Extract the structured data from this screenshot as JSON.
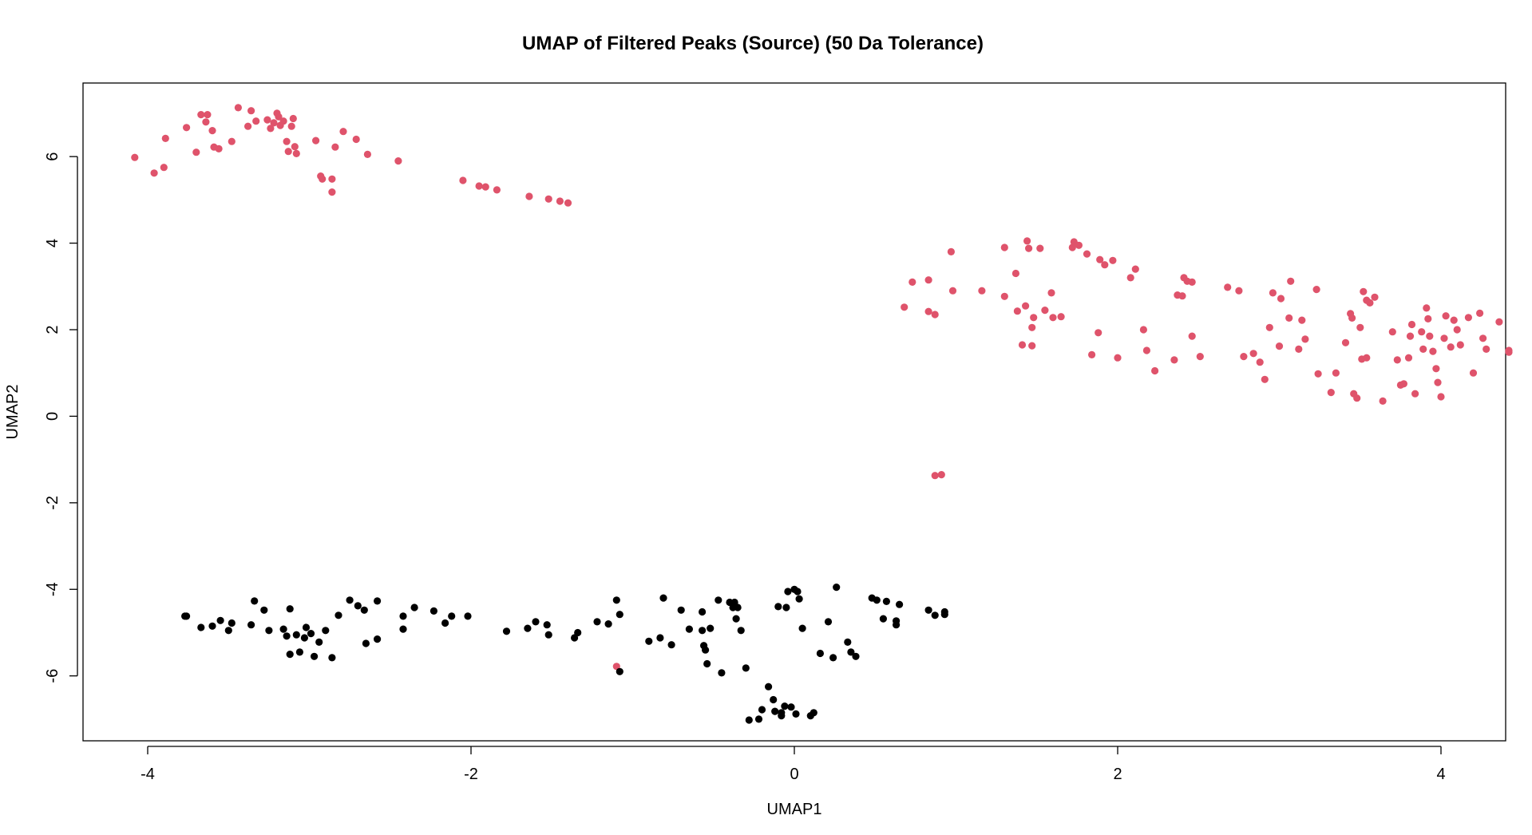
{
  "chart_data": {
    "type": "scatter",
    "title": "UMAP of Filtered Peaks (Source) (50 Da Tolerance)",
    "xlabel": "UMAP1",
    "ylabel": "UMAP2",
    "xlim": [
      -4.4,
      4.4
    ],
    "ylim": [
      -7.5,
      7.7
    ],
    "xticks": [
      -4,
      -2,
      0,
      2,
      4
    ],
    "yticks": [
      -6,
      -4,
      -2,
      0,
      2,
      4,
      6
    ],
    "colors": {
      "red": "#df536b",
      "black": "#000000"
    },
    "series": [
      {
        "color": "red",
        "points": [
          [
            -4.08,
            5.98
          ],
          [
            -3.96,
            5.62
          ],
          [
            -3.9,
            5.75
          ],
          [
            -3.89,
            6.42
          ],
          [
            -3.76,
            6.67
          ],
          [
            -3.7,
            6.1
          ],
          [
            -3.67,
            6.97
          ],
          [
            -3.64,
            6.8
          ],
          [
            -3.63,
            6.97
          ],
          [
            -3.6,
            6.6
          ],
          [
            -3.59,
            6.22
          ],
          [
            -3.56,
            6.18
          ],
          [
            -3.48,
            6.35
          ],
          [
            -3.44,
            7.13
          ],
          [
            -3.38,
            6.7
          ],
          [
            -3.36,
            7.06
          ],
          [
            -3.33,
            6.82
          ],
          [
            -3.26,
            6.85
          ],
          [
            -3.24,
            6.65
          ],
          [
            -3.22,
            6.78
          ],
          [
            -3.2,
            7.0
          ],
          [
            -3.19,
            6.92
          ],
          [
            -3.18,
            6.72
          ],
          [
            -3.16,
            6.82
          ],
          [
            -3.14,
            6.35
          ],
          [
            -3.13,
            6.12
          ],
          [
            -3.11,
            6.7
          ],
          [
            -3.1,
            6.88
          ],
          [
            -3.09,
            6.23
          ],
          [
            -3.08,
            6.07
          ],
          [
            -2.96,
            6.37
          ],
          [
            -2.93,
            5.55
          ],
          [
            -2.92,
            5.48
          ],
          [
            -2.86,
            5.48
          ],
          [
            -2.86,
            5.18
          ],
          [
            -2.84,
            6.22
          ],
          [
            -2.79,
            6.58
          ],
          [
            -2.71,
            6.4
          ],
          [
            -2.64,
            6.05
          ],
          [
            -2.45,
            5.9
          ],
          [
            -2.05,
            5.45
          ],
          [
            -1.95,
            5.32
          ],
          [
            -1.91,
            5.3
          ],
          [
            -1.84,
            5.23
          ],
          [
            -1.64,
            5.08
          ],
          [
            -1.52,
            5.02
          ],
          [
            -1.45,
            4.97
          ],
          [
            -1.4,
            4.93
          ],
          [
            -1.1,
            -5.78
          ],
          [
            0.68,
            2.52
          ],
          [
            0.73,
            3.1
          ],
          [
            0.83,
            3.15
          ],
          [
            0.83,
            2.42
          ],
          [
            0.87,
            2.35
          ],
          [
            0.87,
            -1.37
          ],
          [
            0.91,
            -1.35
          ],
          [
            0.97,
            3.8
          ],
          [
            0.98,
            2.9
          ],
          [
            1.16,
            2.9
          ],
          [
            1.3,
            3.9
          ],
          [
            1.3,
            2.77
          ],
          [
            1.37,
            3.3
          ],
          [
            1.38,
            2.43
          ],
          [
            1.41,
            1.65
          ],
          [
            1.43,
            2.55
          ],
          [
            1.44,
            4.05
          ],
          [
            1.45,
            3.88
          ],
          [
            1.47,
            2.05
          ],
          [
            1.47,
            1.63
          ],
          [
            1.48,
            2.28
          ],
          [
            1.52,
            3.88
          ],
          [
            1.55,
            2.45
          ],
          [
            1.59,
            2.85
          ],
          [
            1.6,
            2.28
          ],
          [
            1.65,
            2.3
          ],
          [
            1.72,
            3.9
          ],
          [
            1.73,
            4.03
          ],
          [
            1.76,
            3.95
          ],
          [
            1.81,
            3.75
          ],
          [
            1.84,
            1.42
          ],
          [
            1.88,
            1.93
          ],
          [
            1.89,
            3.62
          ],
          [
            1.92,
            3.5
          ],
          [
            1.97,
            3.6
          ],
          [
            2.0,
            1.35
          ],
          [
            2.08,
            3.2
          ],
          [
            2.11,
            3.4
          ],
          [
            2.16,
            2.0
          ],
          [
            2.18,
            1.52
          ],
          [
            2.23,
            1.05
          ],
          [
            2.35,
            1.3
          ],
          [
            2.37,
            2.8
          ],
          [
            2.4,
            2.78
          ],
          [
            2.41,
            3.2
          ],
          [
            2.43,
            3.12
          ],
          [
            2.46,
            3.1
          ],
          [
            2.46,
            1.85
          ],
          [
            2.51,
            1.38
          ],
          [
            2.68,
            2.98
          ],
          [
            2.75,
            2.9
          ],
          [
            2.78,
            1.38
          ],
          [
            2.84,
            1.45
          ],
          [
            2.88,
            1.25
          ],
          [
            2.91,
            0.85
          ],
          [
            2.94,
            2.05
          ],
          [
            2.96,
            2.85
          ],
          [
            3.0,
            1.62
          ],
          [
            3.01,
            2.72
          ],
          [
            3.06,
            2.27
          ],
          [
            3.07,
            3.12
          ],
          [
            3.12,
            1.55
          ],
          [
            3.14,
            2.22
          ],
          [
            3.16,
            1.78
          ],
          [
            3.23,
            2.93
          ],
          [
            3.24,
            0.98
          ],
          [
            3.32,
            0.55
          ],
          [
            3.35,
            1.0
          ],
          [
            3.41,
            1.7
          ],
          [
            3.44,
            2.37
          ],
          [
            3.45,
            2.27
          ],
          [
            3.46,
            0.52
          ],
          [
            3.48,
            0.42
          ],
          [
            3.5,
            2.05
          ],
          [
            3.51,
            1.32
          ],
          [
            3.52,
            2.88
          ],
          [
            3.54,
            2.68
          ],
          [
            3.54,
            1.35
          ],
          [
            3.56,
            2.62
          ],
          [
            3.59,
            2.75
          ],
          [
            3.64,
            0.35
          ],
          [
            3.7,
            1.95
          ],
          [
            3.73,
            1.3
          ],
          [
            3.75,
            0.72
          ],
          [
            3.77,
            0.75
          ],
          [
            3.8,
            1.35
          ],
          [
            3.81,
            1.85
          ],
          [
            3.82,
            2.12
          ],
          [
            3.84,
            0.52
          ],
          [
            3.88,
            1.95
          ],
          [
            3.89,
            1.55
          ],
          [
            3.91,
            2.5
          ],
          [
            3.92,
            2.25
          ],
          [
            3.93,
            1.85
          ],
          [
            3.95,
            1.5
          ],
          [
            3.97,
            1.1
          ],
          [
            3.98,
            0.78
          ],
          [
            4.0,
            0.45
          ],
          [
            4.02,
            1.8
          ],
          [
            4.03,
            2.32
          ],
          [
            4.06,
            1.6
          ],
          [
            4.08,
            2.22
          ],
          [
            4.1,
            2.0
          ],
          [
            4.12,
            1.65
          ],
          [
            4.17,
            2.28
          ],
          [
            4.2,
            1.0
          ],
          [
            4.24,
            2.38
          ],
          [
            4.26,
            1.8
          ],
          [
            4.28,
            1.55
          ],
          [
            4.36,
            2.18
          ],
          [
            4.42,
            1.52
          ],
          [
            4.42,
            1.48
          ]
        ]
      },
      {
        "color": "black",
        "points": [
          [
            -3.77,
            -4.62
          ],
          [
            -3.76,
            -4.62
          ],
          [
            -3.67,
            -4.88
          ],
          [
            -3.6,
            -4.85
          ],
          [
            -3.55,
            -4.72
          ],
          [
            -3.5,
            -4.95
          ],
          [
            -3.48,
            -4.78
          ],
          [
            -3.36,
            -4.82
          ],
          [
            -3.34,
            -4.27
          ],
          [
            -3.28,
            -4.48
          ],
          [
            -3.25,
            -4.95
          ],
          [
            -3.16,
            -4.92
          ],
          [
            -3.14,
            -5.08
          ],
          [
            -3.12,
            -4.45
          ],
          [
            -3.12,
            -5.5
          ],
          [
            -3.08,
            -5.05
          ],
          [
            -3.06,
            -5.45
          ],
          [
            -3.03,
            -5.12
          ],
          [
            -3.02,
            -4.88
          ],
          [
            -2.99,
            -5.02
          ],
          [
            -2.97,
            -5.55
          ],
          [
            -2.94,
            -5.22
          ],
          [
            -2.9,
            -4.95
          ],
          [
            -2.86,
            -5.58
          ],
          [
            -2.82,
            -4.6
          ],
          [
            -2.75,
            -4.25
          ],
          [
            -2.7,
            -4.38
          ],
          [
            -2.66,
            -4.48
          ],
          [
            -2.65,
            -5.25
          ],
          [
            -2.58,
            -5.15
          ],
          [
            -2.58,
            -4.27
          ],
          [
            -2.42,
            -4.92
          ],
          [
            -2.42,
            -4.62
          ],
          [
            -2.35,
            -4.42
          ],
          [
            -2.23,
            -4.5
          ],
          [
            -2.16,
            -4.78
          ],
          [
            -2.12,
            -4.62
          ],
          [
            -2.02,
            -4.62
          ],
          [
            -1.78,
            -4.97
          ],
          [
            -1.65,
            -4.9
          ],
          [
            -1.6,
            -4.75
          ],
          [
            -1.53,
            -4.82
          ],
          [
            -1.52,
            -5.05
          ],
          [
            -1.36,
            -5.12
          ],
          [
            -1.34,
            -5.0
          ],
          [
            -1.22,
            -4.75
          ],
          [
            -1.15,
            -4.8
          ],
          [
            -1.08,
            -4.58
          ],
          [
            -1.1,
            -4.25
          ],
          [
            -1.08,
            -5.9
          ],
          [
            -0.9,
            -5.2
          ],
          [
            -0.83,
            -5.12
          ],
          [
            -0.81,
            -4.2
          ],
          [
            -0.76,
            -5.28
          ],
          [
            -0.7,
            -4.48
          ],
          [
            -0.65,
            -4.92
          ],
          [
            -0.57,
            -4.52
          ],
          [
            -0.57,
            -4.95
          ],
          [
            -0.56,
            -5.3
          ],
          [
            -0.55,
            -5.4
          ],
          [
            -0.54,
            -5.72
          ],
          [
            -0.52,
            -4.9
          ],
          [
            -0.47,
            -4.25
          ],
          [
            -0.45,
            -5.93
          ],
          [
            -0.4,
            -4.3
          ],
          [
            -0.38,
            -4.42
          ],
          [
            -0.37,
            -4.3
          ],
          [
            -0.36,
            -4.68
          ],
          [
            -0.35,
            -4.42
          ],
          [
            -0.33,
            -4.95
          ],
          [
            -0.3,
            -5.82
          ],
          [
            -0.28,
            -7.02
          ],
          [
            -0.22,
            -7.0
          ],
          [
            -0.2,
            -6.78
          ],
          [
            -0.16,
            -6.25
          ],
          [
            -0.13,
            -6.55
          ],
          [
            -0.12,
            -6.82
          ],
          [
            -0.1,
            -4.4
          ],
          [
            -0.08,
            -6.92
          ],
          [
            -0.08,
            -6.85
          ],
          [
            -0.06,
            -6.7
          ],
          [
            -0.05,
            -4.42
          ],
          [
            -0.04,
            -4.05
          ],
          [
            -0.02,
            -6.72
          ],
          [
            0.0,
            -4.0
          ],
          [
            0.01,
            -6.88
          ],
          [
            0.02,
            -4.05
          ],
          [
            0.03,
            -4.22
          ],
          [
            0.05,
            -4.9
          ],
          [
            0.1,
            -6.92
          ],
          [
            0.12,
            -6.85
          ],
          [
            0.16,
            -5.48
          ],
          [
            0.21,
            -4.75
          ],
          [
            0.24,
            -5.58
          ],
          [
            0.26,
            -3.95
          ],
          [
            0.33,
            -5.22
          ],
          [
            0.35,
            -5.45
          ],
          [
            0.38,
            -5.55
          ],
          [
            0.48,
            -4.2
          ],
          [
            0.51,
            -4.25
          ],
          [
            0.55,
            -4.68
          ],
          [
            0.57,
            -4.28
          ],
          [
            0.63,
            -4.73
          ],
          [
            0.63,
            -4.82
          ],
          [
            0.65,
            -4.35
          ],
          [
            0.83,
            -4.48
          ],
          [
            0.87,
            -4.6
          ],
          [
            0.93,
            -4.52
          ],
          [
            0.93,
            -4.58
          ]
        ]
      }
    ]
  }
}
